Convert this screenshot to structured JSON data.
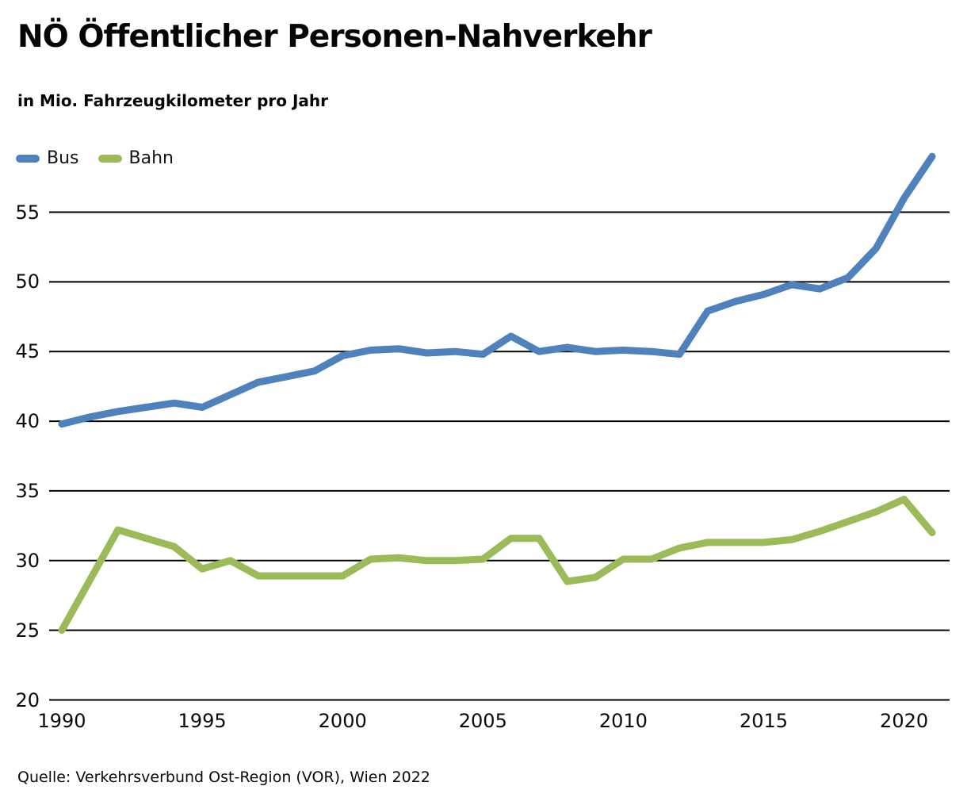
{
  "header": {
    "title": "NÖ Öffentlicher Personen-Nahverkehr",
    "subtitle": "in Mio. Fahrzeugkilometer pro Jahr"
  },
  "footer": {
    "source": "Quelle: Verkehrsverbund Ost-Region (VOR), Wien 2022"
  },
  "chart_data": {
    "type": "line",
    "title": "NÖ Öffentlicher Personen-Nahverkehr",
    "subtitle": "in Mio. Fahrzeugkilometer pro Jahr",
    "unit": "Mio. Fahrzeugkilometer pro Jahr",
    "x": [
      1990,
      1991,
      1992,
      1993,
      1994,
      1995,
      1996,
      1997,
      1998,
      1999,
      2000,
      2001,
      2002,
      2003,
      2004,
      2005,
      2006,
      2007,
      2008,
      2009,
      2010,
      2011,
      2012,
      2013,
      2014,
      2015,
      2016,
      2017,
      2018,
      2019,
      2020,
      2021
    ],
    "series": [
      {
        "name": "Bus",
        "color": "#4f81bd",
        "values": [
          39.8,
          40.3,
          40.7,
          41.0,
          41.3,
          41.0,
          41.9,
          42.8,
          43.2,
          43.6,
          44.7,
          45.1,
          45.2,
          44.9,
          45.0,
          44.8,
          46.1,
          45.0,
          45.3,
          45.0,
          45.1,
          45.0,
          44.8,
          47.9,
          48.6,
          49.1,
          49.8,
          49.5,
          50.3,
          52.4,
          56.0,
          59.0
        ]
      },
      {
        "name": "Bahn",
        "color": "#9bbb59",
        "values": [
          25.0,
          28.6,
          32.2,
          31.6,
          31.0,
          29.4,
          30.0,
          28.9,
          28.9,
          28.9,
          28.9,
          30.1,
          30.2,
          30.0,
          30.0,
          30.1,
          31.6,
          31.6,
          28.5,
          28.8,
          30.1,
          30.1,
          30.9,
          31.3,
          31.3,
          31.3,
          31.5,
          32.1,
          32.8,
          33.5,
          34.4,
          32.0
        ]
      }
    ],
    "xticks": [
      1990,
      1995,
      2000,
      2005,
      2010,
      2015,
      2020
    ],
    "yticks": [
      55,
      50,
      45,
      40,
      35,
      30,
      25,
      20
    ],
    "ylim": [
      20,
      60.5
    ],
    "xlim": [
      1990,
      2021
    ],
    "grid": "horizontal",
    "grid_color": "#000000",
    "legend_position": "top-left",
    "source": "Quelle: Verkehrsverbund Ost-Region (VOR), Wien 2022"
  }
}
